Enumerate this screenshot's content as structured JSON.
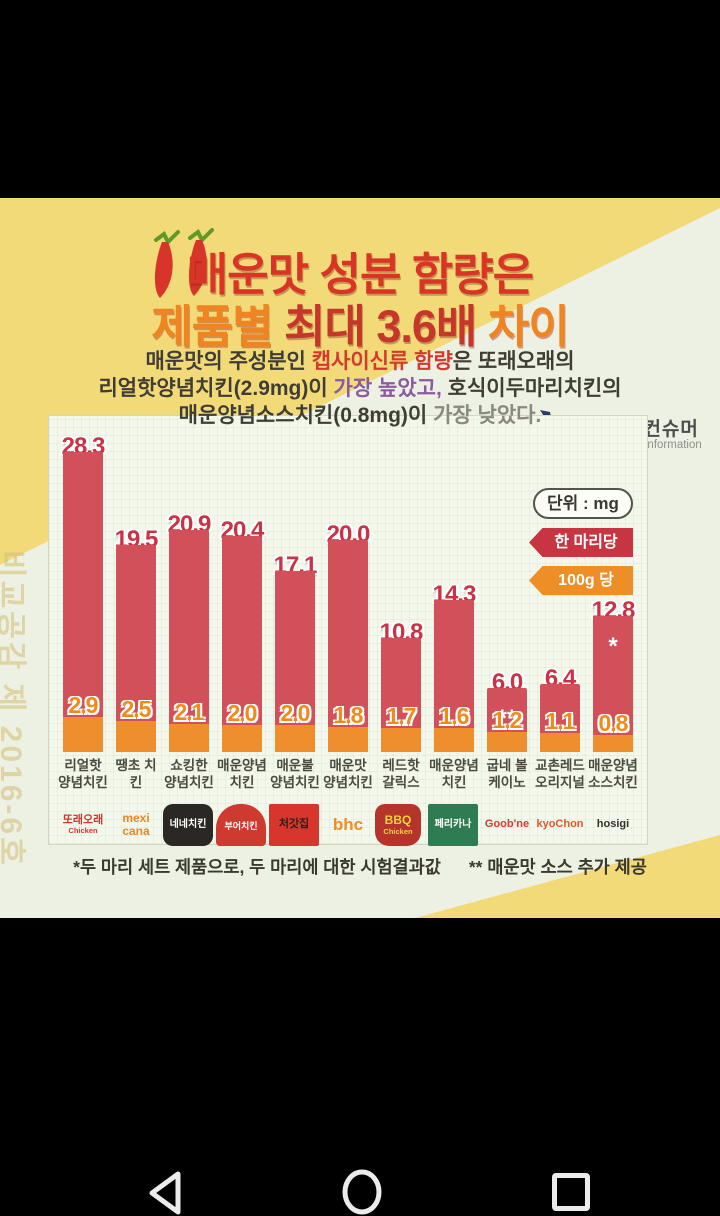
{
  "header": {
    "brand_name": "스마트컨슈머",
    "brand_subtitle": "Consumer Information",
    "title_line1": "매운맛 성분 함량은",
    "title_line2_part1": "제품별 ",
    "title_line2_part2": "최대 3.6배 ",
    "title_line2_part3": "차이"
  },
  "intro": {
    "line1_pre": "매운맛의 주성분인 ",
    "line1_red": "캡사이신류 함량",
    "line1_post": "은 또래오래의",
    "line2_pre": "리얼핫양념치킨(2.9mg)이 ",
    "line2_purple": "가장 높았고,",
    "line2_post": " 호식이두마리치킨의",
    "line3_pre": "매운양념소스치킨(0.8mg)이 ",
    "line3_gray": "가장 낮았다."
  },
  "legend": {
    "unit_label": "단위 : mg",
    "series1_label": "한 마리당",
    "series2_label": "100g 당"
  },
  "chart_data": {
    "type": "bar",
    "unit": "mg",
    "categories": [
      "리얼핫 양념치킨",
      "땡초 치킨",
      "쇼킹한 양념치킨",
      "매운양념 치킨",
      "매운불 양념치킨",
      "매운맛 양념치킨",
      "레드핫 갈릭스",
      "매운양념 치킨",
      "굽네 볼케이노",
      "교촌레드 오리지널",
      "매운양념 소스치킨"
    ],
    "series": [
      {
        "name": "한 마리당",
        "values": [
          "28.3",
          "19.5",
          "20.9",
          "20.4",
          "17.1",
          "20.0",
          "10.8",
          "14.3",
          "6.0",
          "6.4",
          "12.8"
        ]
      },
      {
        "name": "100g 당",
        "values": [
          "2.9",
          "2.5",
          "2.1",
          "2.0",
          "2.0",
          "1.8",
          "1.7",
          "1.6",
          "1.2",
          "1.1",
          "0.8"
        ]
      }
    ],
    "marks": [
      "",
      "",
      "",
      "",
      "",
      "",
      "",
      "",
      "**",
      "",
      "*"
    ],
    "legend_position": "top-right",
    "grid": "faint",
    "ylim": [
      0,
      30
    ]
  },
  "logos": [
    {
      "text": "또래오래",
      "sub": "Chicken",
      "fg": "#cf382d",
      "bg": "",
      "shape": "text",
      "size": "11px"
    },
    {
      "text": "mexi cana",
      "sub": "",
      "fg": "#e8862a",
      "bg": "",
      "shape": "text",
      "size": "12px"
    },
    {
      "text": "네네치킨",
      "sub": "",
      "fg": "#ffffff",
      "bg": "#2a2724",
      "shape": "pill",
      "size": "10px"
    },
    {
      "text": "부어치킨",
      "sub": "",
      "fg": "#ffffff",
      "bg": "#ce3a2f",
      "shape": "arch",
      "size": "9px"
    },
    {
      "text": "처갓집",
      "sub": "",
      "fg": "#2e2019",
      "bg": "#d8352c",
      "shape": "rect",
      "size": "11px"
    },
    {
      "text": "bhc",
      "sub": "",
      "fg": "#ef8d26",
      "bg": "",
      "shape": "text",
      "size": "17px"
    },
    {
      "text": "BBQ",
      "sub": "Chicken",
      "fg": "#f5d23c",
      "bg": "#b5352c",
      "shape": "badge",
      "size": "12px"
    },
    {
      "text": "페리카나",
      "sub": "",
      "fg": "#ffffff",
      "bg": "#2f7b52",
      "shape": "rect",
      "size": "10px"
    },
    {
      "text": "Goob'ne",
      "sub": "",
      "fg": "#d43a2e",
      "bg": "",
      "shape": "text",
      "size": "11px"
    },
    {
      "text": "kyoChon",
      "sub": "",
      "fg": "#e2572a",
      "bg": "",
      "shape": "text",
      "size": "11px"
    },
    {
      "text": "hosigi",
      "sub": "",
      "fg": "#33302a",
      "bg": "",
      "shape": "text",
      "size": "11px"
    }
  ],
  "footnotes": {
    "note1": "*두 마리 세트 제품으로, 두 마리에 대한 시험결과값",
    "note2": "** 매운맛 소스 추가 제공"
  },
  "side_label": "비교공감 제 2016-6호",
  "colors": {
    "background_yellow": "#f2da78",
    "background_pale": "#edf1e3",
    "bar_per_chicken": "#d15059",
    "bar_per_100g": "#ee8e2c",
    "value_red": "#ca3246",
    "value_orange": "#ef8a1d",
    "title_red": "#d93526",
    "title_orange": "#ef8420",
    "legend_red": "#c63541",
    "legend_orange": "#ee8e26"
  }
}
